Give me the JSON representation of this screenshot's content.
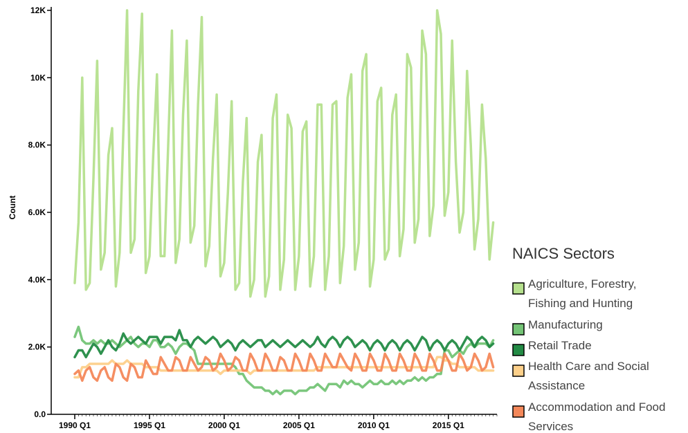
{
  "chart_data": {
    "type": "line",
    "xlabel": "",
    "ylabel": "Count",
    "ylim": [
      0,
      12000
    ],
    "y_ticks": [
      "0.0",
      "2.0K",
      "4.0K",
      "6.0K",
      "8.0K",
      "10K",
      "12K"
    ],
    "y_tick_values": [
      0,
      2000,
      4000,
      6000,
      8000,
      10000,
      12000
    ],
    "x_ticks": [
      "1990 Q1",
      "1995 Q1",
      "2000 Q1",
      "2005 Q1",
      "2010 Q1",
      "2015 Q1"
    ],
    "x_tick_values": [
      1990.0,
      1995.0,
      2000.0,
      2005.0,
      2010.0,
      2015.0
    ],
    "xlim": [
      1990.0,
      2018.25
    ],
    "x_start": 1990.0,
    "x_step": 0.25,
    "legend": {
      "title": "NAICS Sectors",
      "position": "right"
    },
    "series": [
      {
        "name": "Agriculture, Forestry, Fishing and Hunting",
        "color": "#b5e08d",
        "values": [
          3900,
          5700,
          10000,
          3700,
          3900,
          7000,
          10500,
          4300,
          4800,
          7700,
          8500,
          3800,
          4800,
          8400,
          12000,
          4800,
          5200,
          9600,
          11900,
          4200,
          4700,
          7700,
          10100,
          4700,
          4700,
          8000,
          11400,
          4500,
          5200,
          8900,
          11100,
          5100,
          5600,
          9200,
          11800,
          4400,
          5000,
          7600,
          9500,
          4100,
          4500,
          6600,
          9300,
          3700,
          3900,
          6900,
          8800,
          3500,
          4000,
          7500,
          8300,
          3500,
          4100,
          8800,
          9500,
          3700,
          4600,
          8900,
          8500,
          3700,
          4700,
          8400,
          8700,
          3800,
          4700,
          9200,
          9200,
          3700,
          4700,
          9200,
          9300,
          3900,
          5000,
          9400,
          10100,
          4300,
          5100,
          10200,
          10700,
          3800,
          4600,
          9300,
          9700,
          4600,
          4900,
          8900,
          9500,
          4700,
          5500,
          10700,
          10300,
          5100,
          5800,
          11400,
          10700,
          5300,
          6200,
          12000,
          11300,
          5900,
          6600,
          11100,
          7500,
          5400,
          6000,
          10200,
          8000,
          4900,
          5800,
          9200,
          7600,
          4600,
          5700
        ]
      },
      {
        "name": "Manufacturing",
        "color": "#74c476",
        "values": [
          2300,
          2600,
          2200,
          2100,
          2100,
          2200,
          2100,
          2200,
          2100,
          2100,
          2200,
          2100,
          2000,
          2100,
          2200,
          2300,
          2100,
          2000,
          2100,
          2100,
          2000,
          2200,
          2200,
          2000,
          2000,
          2100,
          2000,
          1800,
          2000,
          2100,
          2100,
          2000,
          1900,
          1500,
          1500,
          1500,
          1500,
          1500,
          1500,
          1500,
          1500,
          1500,
          1500,
          1400,
          1200,
          1200,
          1000,
          900,
          800,
          800,
          800,
          700,
          700,
          600,
          700,
          600,
          700,
          700,
          700,
          600,
          700,
          700,
          700,
          800,
          800,
          900,
          800,
          700,
          900,
          900,
          900,
          800,
          1000,
          900,
          1000,
          900,
          900,
          800,
          900,
          1000,
          900,
          900,
          1000,
          900,
          900,
          1000,
          900,
          1000,
          900,
          1000,
          1000,
          1100,
          1000,
          1100,
          1000,
          1100,
          1100,
          1200,
          1200,
          1900,
          1900,
          1700,
          1800,
          1900,
          1800,
          2000,
          2100,
          2000,
          2100,
          2100,
          2100,
          2000,
          2200
        ]
      },
      {
        "name": "Retail Trade",
        "color": "#238b45",
        "values": [
          1700,
          1900,
          1900,
          1700,
          1900,
          2100,
          2000,
          1800,
          2000,
          2200,
          2000,
          1900,
          2100,
          2400,
          2200,
          2100,
          2200,
          2300,
          2200,
          2100,
          2300,
          2300,
          2300,
          2100,
          2300,
          2300,
          2300,
          2200,
          2500,
          2200,
          2200,
          2000,
          2200,
          2300,
          2200,
          2100,
          2200,
          2300,
          2200,
          2000,
          2100,
          2200,
          2100,
          1900,
          2100,
          2200,
          2100,
          2000,
          2100,
          2200,
          2200,
          2000,
          2100,
          2200,
          2100,
          2000,
          2100,
          2200,
          2100,
          2000,
          2100,
          2200,
          2100,
          2000,
          2100,
          2300,
          2100,
          2000,
          2200,
          2300,
          2200,
          2000,
          2200,
          2300,
          2200,
          2000,
          2100,
          2200,
          2100,
          1900,
          2100,
          2200,
          2100,
          1900,
          2100,
          2200,
          2100,
          1900,
          2100,
          2200,
          2100,
          1900,
          2100,
          2300,
          2200,
          1900,
          2100,
          2200,
          2100,
          1900,
          2100,
          2200,
          2100,
          1900,
          2100,
          2300,
          2200,
          2000,
          2200,
          2300,
          2200,
          2000,
          2100
        ]
      },
      {
        "name": "Health Care and Social Assistance",
        "color": "#fdd08a",
        "values": [
          1100,
          1100,
          1400,
          1400,
          1500,
          1500,
          1500,
          1500,
          1500,
          1500,
          1600,
          1500,
          1500,
          1500,
          1600,
          1500,
          1500,
          1500,
          1500,
          1400,
          1400,
          1400,
          1400,
          1300,
          1300,
          1300,
          1300,
          1300,
          1300,
          1300,
          1300,
          1300,
          1300,
          1300,
          1300,
          1300,
          1300,
          1300,
          1300,
          1200,
          1300,
          1300,
          1300,
          1300,
          1300,
          1300,
          1300,
          1200,
          1300,
          1300,
          1300,
          1300,
          1300,
          1300,
          1300,
          1300,
          1300,
          1300,
          1300,
          1300,
          1300,
          1300,
          1300,
          1300,
          1300,
          1400,
          1400,
          1400,
          1400,
          1400,
          1400,
          1400,
          1400,
          1400,
          1400,
          1400,
          1400,
          1400,
          1400,
          1400,
          1400,
          1400,
          1400,
          1400,
          1400,
          1400,
          1400,
          1400,
          1400,
          1400,
          1400,
          1400,
          1400,
          1400,
          1400,
          1400,
          1400,
          1700,
          1700,
          1600,
          1600,
          1500,
          1500,
          1400,
          1400,
          1400,
          1400,
          1400,
          1300,
          1300,
          1300,
          1300,
          1300
        ]
      },
      {
        "name": "Accommodation and Food Services",
        "color": "#f4885a",
        "values": [
          1200,
          1300,
          1000,
          1300,
          1400,
          1100,
          1000,
          1300,
          1400,
          1100,
          1000,
          1500,
          1400,
          1100,
          1000,
          1500,
          1400,
          1100,
          1100,
          1600,
          1400,
          1200,
          1200,
          1700,
          1500,
          1300,
          1300,
          1700,
          1600,
          1300,
          1300,
          1700,
          1500,
          1300,
          1400,
          1700,
          1600,
          1300,
          1400,
          1800,
          1600,
          1300,
          1400,
          1700,
          1600,
          1300,
          1300,
          1800,
          1600,
          1300,
          1300,
          1800,
          1600,
          1300,
          1300,
          1700,
          1600,
          1300,
          1300,
          1800,
          1600,
          1300,
          1300,
          1800,
          1600,
          1300,
          1300,
          1800,
          1600,
          1400,
          1400,
          1800,
          1600,
          1400,
          1300,
          1800,
          1600,
          1300,
          1300,
          1800,
          1600,
          1300,
          1300,
          1800,
          1600,
          1300,
          1300,
          1800,
          1600,
          1300,
          1300,
          1800,
          1600,
          1300,
          1300,
          1800,
          1600,
          1300,
          1300,
          1800,
          1600,
          1300,
          1300,
          1800,
          1600,
          1300,
          1400,
          1800,
          1600,
          1300,
          1400,
          1800,
          1400
        ]
      }
    ],
    "legend_items": [
      {
        "lines": [
          "Agriculture, Forestry,",
          "Fishing and Hunting"
        ],
        "color": "#b5e08d"
      },
      {
        "lines": [
          "Manufacturing"
        ],
        "color": "#74c476"
      },
      {
        "lines": [
          "Retail Trade"
        ],
        "color": "#238b45"
      },
      {
        "lines": [
          "Health Care and Social",
          "Assistance"
        ],
        "color": "#fdd08a"
      },
      {
        "lines": [
          "Accommodation and Food",
          "Services"
        ],
        "color": "#f4885a"
      }
    ]
  }
}
